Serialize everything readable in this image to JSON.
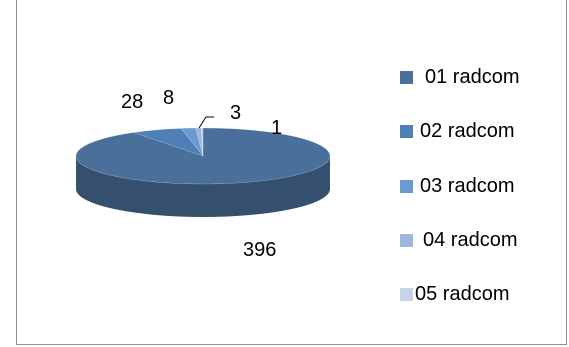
{
  "chart_data": {
    "type": "pie",
    "style": "3d",
    "categories": [
      "01 radcom",
      "02 radcom",
      "03 radcom",
      "04 radcom",
      "05 radcom"
    ],
    "values": [
      396,
      28,
      8,
      3,
      1
    ],
    "data_labels": [
      "396",
      "28",
      "8",
      "3",
      "1"
    ],
    "colors": [
      "#4a6f9a",
      "#4f7fb6",
      "#6a9bd0",
      "#9fb5d9",
      "#c8d3e8"
    ],
    "legend": {
      "position": "right",
      "entries": [
        "01 radcom",
        "02 radcom",
        "03 radcom",
        "04 radcom",
        "05 radcom"
      ]
    },
    "title": ""
  }
}
